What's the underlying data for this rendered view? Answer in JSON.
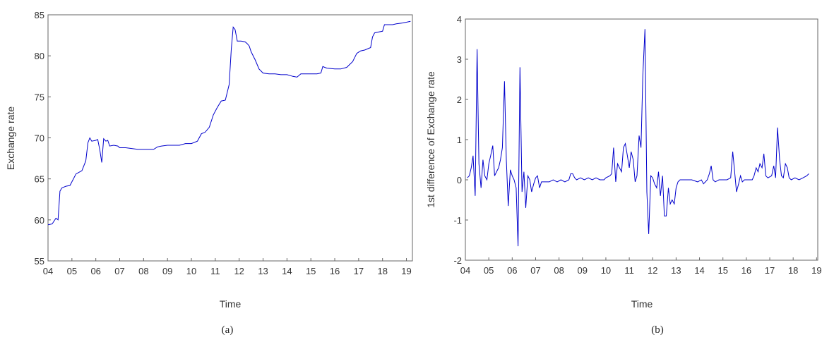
{
  "chart_data": [
    {
      "type": "line",
      "caption": "(a)",
      "xlabel": "Time",
      "ylabel": "Exchange rate",
      "ylim": [
        55,
        85
      ],
      "xlim": [
        2004,
        2019.25
      ],
      "y_ticks": [
        55,
        60,
        65,
        70,
        75,
        80,
        85
      ],
      "x_ticks": [
        {
          "v": 2004,
          "label": "04"
        },
        {
          "v": 2005,
          "label": "05"
        },
        {
          "v": 2006,
          "label": "06"
        },
        {
          "v": 2007,
          "label": "07"
        },
        {
          "v": 2008,
          "label": "08"
        },
        {
          "v": 2009,
          "label": "09"
        },
        {
          "v": 2010,
          "label": "10"
        },
        {
          "v": 2011,
          "label": "11"
        },
        {
          "v": 2012,
          "label": "12"
        },
        {
          "v": 2013,
          "label": "13"
        },
        {
          "v": 2014,
          "label": "14"
        },
        {
          "v": 2015,
          "label": "15"
        },
        {
          "v": 2016,
          "label": "16"
        },
        {
          "v": 2017,
          "label": "17"
        },
        {
          "v": 2018,
          "label": "18"
        },
        {
          "v": 2019,
          "label": "19"
        }
      ],
      "line_color": "#0000cc",
      "grid": false,
      "series": [
        {
          "points": [
            [
              2004.0,
              59.4
            ],
            [
              2004.17,
              59.5
            ],
            [
              2004.33,
              60.2
            ],
            [
              2004.42,
              60.0
            ],
            [
              2004.5,
              63.5
            ],
            [
              2004.58,
              63.9
            ],
            [
              2004.75,
              64.1
            ],
            [
              2004.92,
              64.2
            ],
            [
              2005.17,
              65.6
            ],
            [
              2005.42,
              66.0
            ],
            [
              2005.58,
              67.2
            ],
            [
              2005.67,
              69.4
            ],
            [
              2005.75,
              70.0
            ],
            [
              2005.83,
              69.6
            ],
            [
              2006.0,
              69.7
            ],
            [
              2006.08,
              69.8
            ],
            [
              2006.17,
              68.5
            ],
            [
              2006.25,
              67.0
            ],
            [
              2006.33,
              69.9
            ],
            [
              2006.42,
              69.6
            ],
            [
              2006.5,
              69.7
            ],
            [
              2006.58,
              69.0
            ],
            [
              2006.75,
              69.1
            ],
            [
              2006.92,
              69.0
            ],
            [
              2007.0,
              68.8
            ],
            [
              2007.25,
              68.8
            ],
            [
              2007.5,
              68.7
            ],
            [
              2007.75,
              68.6
            ],
            [
              2008.0,
              68.6
            ],
            [
              2008.25,
              68.6
            ],
            [
              2008.42,
              68.6
            ],
            [
              2008.58,
              68.9
            ],
            [
              2008.75,
              69.0
            ],
            [
              2009.0,
              69.1
            ],
            [
              2009.5,
              69.1
            ],
            [
              2009.75,
              69.3
            ],
            [
              2010.0,
              69.3
            ],
            [
              2010.25,
              69.6
            ],
            [
              2010.42,
              70.5
            ],
            [
              2010.58,
              70.7
            ],
            [
              2010.75,
              71.3
            ],
            [
              2010.92,
              72.8
            ],
            [
              2011.08,
              73.7
            ],
            [
              2011.25,
              74.5
            ],
            [
              2011.42,
              74.6
            ],
            [
              2011.58,
              76.5
            ],
            [
              2011.67,
              80.8
            ],
            [
              2011.75,
              83.5
            ],
            [
              2011.83,
              83.2
            ],
            [
              2011.92,
              81.8
            ],
            [
              2012.08,
              81.8
            ],
            [
              2012.25,
              81.7
            ],
            [
              2012.33,
              81.5
            ],
            [
              2012.42,
              81.2
            ],
            [
              2012.5,
              80.5
            ],
            [
              2012.67,
              79.5
            ],
            [
              2012.83,
              78.4
            ],
            [
              2013.0,
              77.9
            ],
            [
              2013.25,
              77.8
            ],
            [
              2013.5,
              77.8
            ],
            [
              2013.75,
              77.7
            ],
            [
              2014.0,
              77.7
            ],
            [
              2014.25,
              77.5
            ],
            [
              2014.42,
              77.4
            ],
            [
              2014.58,
              77.8
            ],
            [
              2014.75,
              77.8
            ],
            [
              2015.0,
              77.8
            ],
            [
              2015.25,
              77.8
            ],
            [
              2015.42,
              77.9
            ],
            [
              2015.5,
              78.7
            ],
            [
              2015.58,
              78.6
            ],
            [
              2015.67,
              78.5
            ],
            [
              2016.0,
              78.4
            ],
            [
              2016.25,
              78.4
            ],
            [
              2016.5,
              78.6
            ],
            [
              2016.75,
              79.3
            ],
            [
              2016.92,
              80.3
            ],
            [
              2017.08,
              80.6
            ],
            [
              2017.25,
              80.7
            ],
            [
              2017.5,
              81.0
            ],
            [
              2017.58,
              82.3
            ],
            [
              2017.67,
              82.8
            ],
            [
              2017.83,
              82.9
            ],
            [
              2018.0,
              83.0
            ],
            [
              2018.08,
              83.8
            ],
            [
              2018.42,
              83.8
            ],
            [
              2018.58,
              83.9
            ],
            [
              2018.83,
              84.0
            ],
            [
              2019.0,
              84.1
            ],
            [
              2019.17,
              84.2
            ]
          ]
        }
      ]
    },
    {
      "type": "line",
      "caption": "(b)",
      "xlabel": "Time",
      "ylabel": "1st difference of Exchange rate",
      "ylim": [
        -2,
        4
      ],
      "xlim": [
        2004,
        2019.05
      ],
      "y_ticks": [
        -2,
        -1,
        0,
        1,
        2,
        3,
        4
      ],
      "x_ticks": [
        {
          "v": 2004,
          "label": "04"
        },
        {
          "v": 2005,
          "label": "05"
        },
        {
          "v": 2006,
          "label": "06"
        },
        {
          "v": 2007,
          "label": "07"
        },
        {
          "v": 2008,
          "label": "08"
        },
        {
          "v": 2009,
          "label": "09"
        },
        {
          "v": 2010,
          "label": "10"
        },
        {
          "v": 2011,
          "label": "11"
        },
        {
          "v": 2012,
          "label": "12"
        },
        {
          "v": 2013,
          "label": "13"
        },
        {
          "v": 2014,
          "label": "14"
        },
        {
          "v": 2015,
          "label": "15"
        },
        {
          "v": 2016,
          "label": "16"
        },
        {
          "v": 2017,
          "label": "17"
        },
        {
          "v": 2018,
          "label": "18"
        },
        {
          "v": 2019,
          "label": "19"
        }
      ],
      "line_color": "#0000cc",
      "grid": false,
      "series": [
        {
          "points": [
            [
              2004.08,
              0.05
            ],
            [
              2004.17,
              0.1
            ],
            [
              2004.25,
              0.3
            ],
            [
              2004.33,
              0.6
            ],
            [
              2004.42,
              -0.4
            ],
            [
              2004.5,
              3.25
            ],
            [
              2004.58,
              0.4
            ],
            [
              2004.67,
              -0.2
            ],
            [
              2004.75,
              0.5
            ],
            [
              2004.83,
              0.1
            ],
            [
              2004.92,
              0.0
            ],
            [
              2005.0,
              0.4
            ],
            [
              2005.08,
              0.6
            ],
            [
              2005.17,
              0.85
            ],
            [
              2005.25,
              0.1
            ],
            [
              2005.33,
              0.2
            ],
            [
              2005.42,
              0.3
            ],
            [
              2005.5,
              0.5
            ],
            [
              2005.58,
              0.8
            ],
            [
              2005.67,
              2.45
            ],
            [
              2005.75,
              0.5
            ],
            [
              2005.83,
              -0.65
            ],
            [
              2005.92,
              0.25
            ],
            [
              2006.0,
              0.1
            ],
            [
              2006.08,
              0.0
            ],
            [
              2006.17,
              -0.2
            ],
            [
              2006.25,
              -1.65
            ],
            [
              2006.33,
              2.8
            ],
            [
              2006.42,
              -0.3
            ],
            [
              2006.5,
              0.2
            ],
            [
              2006.58,
              -0.7
            ],
            [
              2006.67,
              0.1
            ],
            [
              2006.75,
              0.0
            ],
            [
              2006.83,
              -0.3
            ],
            [
              2006.92,
              -0.1
            ],
            [
              2007.0,
              0.05
            ],
            [
              2007.08,
              0.1
            ],
            [
              2007.17,
              -0.2
            ],
            [
              2007.25,
              -0.05
            ],
            [
              2007.42,
              -0.05
            ],
            [
              2007.58,
              -0.05
            ],
            [
              2007.75,
              0.0
            ],
            [
              2007.92,
              -0.05
            ],
            [
              2008.08,
              0.0
            ],
            [
              2008.25,
              -0.05
            ],
            [
              2008.42,
              0.0
            ],
            [
              2008.5,
              0.15
            ],
            [
              2008.58,
              0.15
            ],
            [
              2008.67,
              0.05
            ],
            [
              2008.75,
              0.0
            ],
            [
              2008.92,
              0.05
            ],
            [
              2009.08,
              0.0
            ],
            [
              2009.25,
              0.05
            ],
            [
              2009.42,
              0.0
            ],
            [
              2009.58,
              0.05
            ],
            [
              2009.75,
              0.0
            ],
            [
              2009.92,
              0.0
            ],
            [
              2010.0,
              0.05
            ],
            [
              2010.17,
              0.1
            ],
            [
              2010.25,
              0.15
            ],
            [
              2010.33,
              0.8
            ],
            [
              2010.42,
              -0.05
            ],
            [
              2010.5,
              0.4
            ],
            [
              2010.58,
              0.3
            ],
            [
              2010.67,
              0.2
            ],
            [
              2010.75,
              0.8
            ],
            [
              2010.83,
              0.9
            ],
            [
              2010.92,
              0.6
            ],
            [
              2011.0,
              0.3
            ],
            [
              2011.08,
              0.7
            ],
            [
              2011.17,
              0.5
            ],
            [
              2011.25,
              -0.05
            ],
            [
              2011.33,
              0.1
            ],
            [
              2011.42,
              1.1
            ],
            [
              2011.5,
              0.8
            ],
            [
              2011.58,
              2.6
            ],
            [
              2011.67,
              3.75
            ],
            [
              2011.75,
              -0.3
            ],
            [
              2011.83,
              -1.35
            ],
            [
              2011.92,
              0.1
            ],
            [
              2012.0,
              0.05
            ],
            [
              2012.08,
              -0.1
            ],
            [
              2012.17,
              -0.2
            ],
            [
              2012.25,
              0.2
            ],
            [
              2012.33,
              -0.4
            ],
            [
              2012.42,
              0.1
            ],
            [
              2012.5,
              -0.9
            ],
            [
              2012.58,
              -0.9
            ],
            [
              2012.67,
              -0.2
            ],
            [
              2012.75,
              -0.6
            ],
            [
              2012.83,
              -0.5
            ],
            [
              2012.92,
              -0.6
            ],
            [
              2013.0,
              -0.2
            ],
            [
              2013.08,
              -0.05
            ],
            [
              2013.17,
              0.0
            ],
            [
              2013.42,
              0.0
            ],
            [
              2013.67,
              0.0
            ],
            [
              2013.92,
              -0.05
            ],
            [
              2014.08,
              0.0
            ],
            [
              2014.17,
              -0.1
            ],
            [
              2014.25,
              -0.05
            ],
            [
              2014.33,
              0.0
            ],
            [
              2014.42,
              0.15
            ],
            [
              2014.5,
              0.35
            ],
            [
              2014.58,
              0.0
            ],
            [
              2014.67,
              -0.05
            ],
            [
              2014.83,
              0.0
            ],
            [
              2015.0,
              0.0
            ],
            [
              2015.17,
              0.0
            ],
            [
              2015.33,
              0.05
            ],
            [
              2015.42,
              0.7
            ],
            [
              2015.5,
              0.2
            ],
            [
              2015.58,
              -0.3
            ],
            [
              2015.67,
              -0.1
            ],
            [
              2015.75,
              0.1
            ],
            [
              2015.83,
              -0.05
            ],
            [
              2015.92,
              0.0
            ],
            [
              2016.08,
              0.0
            ],
            [
              2016.25,
              0.0
            ],
            [
              2016.33,
              0.1
            ],
            [
              2016.42,
              0.3
            ],
            [
              2016.5,
              0.2
            ],
            [
              2016.58,
              0.4
            ],
            [
              2016.67,
              0.3
            ],
            [
              2016.75,
              0.65
            ],
            [
              2016.83,
              0.1
            ],
            [
              2016.92,
              0.05
            ],
            [
              2017.08,
              0.1
            ],
            [
              2017.17,
              0.35
            ],
            [
              2017.25,
              0.05
            ],
            [
              2017.33,
              1.3
            ],
            [
              2017.42,
              0.5
            ],
            [
              2017.5,
              0.1
            ],
            [
              2017.58,
              0.05
            ],
            [
              2017.67,
              0.4
            ],
            [
              2017.75,
              0.3
            ],
            [
              2017.83,
              0.05
            ],
            [
              2017.92,
              0.0
            ],
            [
              2018.08,
              0.05
            ],
            [
              2018.25,
              0.0
            ],
            [
              2018.42,
              0.05
            ],
            [
              2018.58,
              0.1
            ],
            [
              2018.67,
              0.15
            ]
          ]
        }
      ]
    }
  ]
}
